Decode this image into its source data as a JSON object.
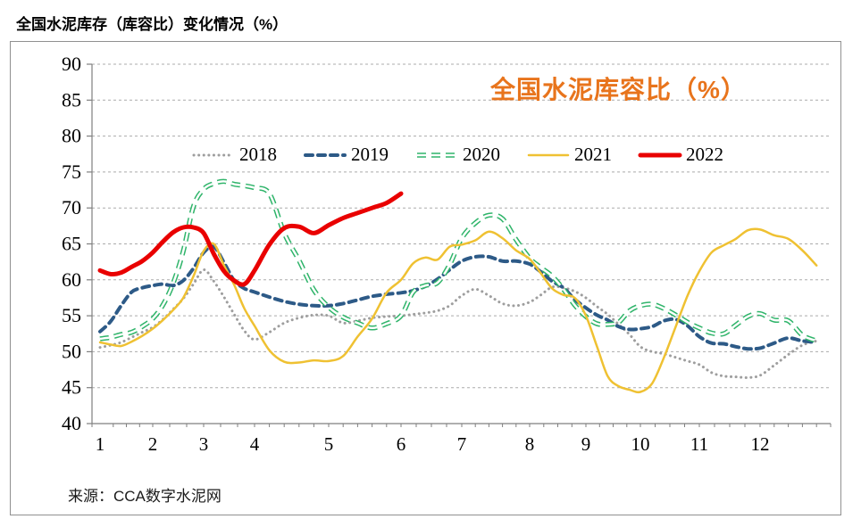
{
  "titles": {
    "page": "全国水泥库存（库容比）变化情况（%）",
    "chart_inner": "全国水泥库容比（%）"
  },
  "source_note": "来源：CCA数字水泥网",
  "colors": {
    "accent_orange": "#E8741C",
    "grid": "#ABABAB",
    "axis": "#7F7F7F",
    "s2018": "#9E9E9E",
    "s2019": "#2D5A87",
    "s2020": "#2FB46A",
    "s2021": "#EFC132",
    "s2022": "#E90000"
  },
  "chart_data": {
    "type": "line",
    "title": "全国水泥库容比（%）",
    "x_axis": {
      "unit": "month",
      "tick_labels": [
        "1",
        "2",
        "3",
        "4",
        "5",
        "6",
        "7",
        "8",
        "9",
        "10",
        "11",
        "12"
      ],
      "range": [
        1,
        13
      ],
      "minor_ticks": "weekly"
    },
    "y_axis": {
      "min": 40,
      "max": 90,
      "step": 5,
      "tick_labels": [
        "40",
        "45",
        "50",
        "55",
        "60",
        "65",
        "70",
        "75",
        "80",
        "85",
        "90"
      ]
    },
    "grid": {
      "horizontal": true,
      "style": "dashed"
    },
    "legend": {
      "position": "top-center-inside"
    },
    "x_start": 1.0,
    "x_step": 0.2,
    "series": [
      {
        "name": "2018",
        "color": "#9E9E9E",
        "line_style": "dotted",
        "line_width": 3,
        "values": [
          50.6,
          50.9,
          51.3,
          52.0,
          52.7,
          53.4,
          54.5,
          55.9,
          57.4,
          59.4,
          61.4,
          59.8,
          57.6,
          55.2,
          52.9,
          51.7,
          52.7,
          54.0,
          54.7,
          55.1,
          55.0,
          54.0,
          54.3,
          54.7,
          54.9,
          55.0,
          55.2,
          55.4,
          55.7,
          56.4,
          57.8,
          58.7,
          57.8,
          56.7,
          56.4,
          56.9,
          57.9,
          59.0,
          58.9,
          58.4,
          57.5,
          56.3,
          55.2,
          53.8,
          52.4,
          50.7,
          50.0,
          49.7,
          49.2,
          48.7,
          48.2,
          47.1,
          46.6,
          46.5,
          46.4,
          46.7,
          48.1,
          49.6,
          50.9,
          51.5
        ]
      },
      {
        "name": "2019",
        "color": "#2D5A87",
        "line_style": "dashed",
        "line_width": 4,
        "values": [
          52.8,
          54.2,
          56.4,
          58.3,
          58.9,
          59.2,
          59.4,
          59.2,
          59.9,
          61.6,
          63.8,
          64.6,
          62.4,
          59.9,
          58.8,
          58.3,
          57.6,
          57.0,
          56.6,
          56.4,
          56.4,
          56.7,
          57.2,
          57.7,
          58.0,
          58.2,
          58.5,
          59.1,
          60.1,
          61.4,
          62.6,
          63.2,
          63.2,
          62.6,
          62.6,
          62.2,
          61.1,
          59.8,
          58.9,
          57.3,
          56.1,
          55.1,
          54.4,
          53.5,
          53.1,
          53.2,
          53.5,
          54.3,
          54.5,
          53.6,
          52.1,
          51.2,
          51.1,
          50.7,
          50.4,
          50.5,
          51.2,
          51.9,
          51.5,
          51.3
        ]
      },
      {
        "name": "2020",
        "color": "#2FB46A",
        "line_style": "dashed-hollow",
        "line_width": 5.5,
        "values": [
          51.8,
          52.0,
          52.4,
          52.7,
          53.5,
          54.6,
          56.5,
          59.5,
          64.0,
          70.2,
          72.6,
          73.4,
          73.7,
          73.3,
          73.1,
          72.8,
          72.0,
          66.5,
          62.7,
          58.6,
          56.2,
          54.8,
          54.0,
          53.3,
          53.9,
          55.0,
          58.3,
          59.2,
          59.6,
          62.1,
          65.8,
          67.9,
          69.0,
          68.5,
          65.6,
          63.0,
          61.7,
          60.5,
          58.7,
          56.5,
          54.9,
          53.9,
          53.8,
          54.1,
          55.7,
          56.4,
          56.6,
          56.0,
          55.1,
          54.1,
          53.3,
          52.6,
          52.5,
          53.7,
          54.9,
          55.3,
          54.4,
          54.3,
          52.3,
          51.5
        ]
      },
      {
        "name": "2021",
        "color": "#EFC132",
        "line_style": "solid",
        "line_width": 2.5,
        "values": [
          51.3,
          51.0,
          50.8,
          51.4,
          52.2,
          53.2,
          54.4,
          55.8,
          57.5,
          60.5,
          64.0,
          65.0,
          62.0,
          59.3,
          56.0,
          53.6,
          50.2,
          48.6,
          48.5,
          48.8,
          48.7,
          49.4,
          52.1,
          54.6,
          58.2,
          60.0,
          62.3,
          63.1,
          62.8,
          64.6,
          64.9,
          65.5,
          66.7,
          65.8,
          64.1,
          62.9,
          60.9,
          58.8,
          57.9,
          57.5,
          55.0,
          50.8,
          46.6,
          45.2,
          44.7,
          44.4,
          45.6,
          49.2,
          53.5,
          57.8,
          61.2,
          63.8,
          64.8,
          65.7,
          66.9,
          67.0,
          66.2,
          65.7,
          64.1,
          62.0
        ]
      },
      {
        "name": "2022",
        "color": "#E90000",
        "line_style": "solid",
        "line_width": 5,
        "values": [
          61.3,
          60.8,
          61.0,
          61.8,
          62.6,
          63.8,
          65.3,
          66.6,
          67.3,
          67.3,
          66.5,
          63.6,
          61.2,
          59.9,
          59.4,
          61.3,
          64.9,
          67.2,
          67.4,
          66.5,
          67.6,
          68.6,
          69.3,
          70.0,
          70.7,
          72.0
        ]
      }
    ]
  }
}
